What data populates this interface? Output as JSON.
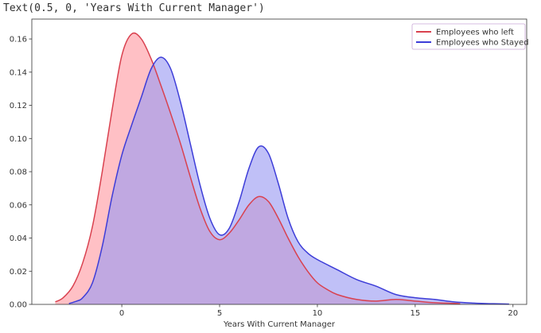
{
  "output_text": "Text(0.5, 0, 'Years With Current Manager')",
  "chart_data": {
    "type": "area",
    "title": "",
    "xlabel": "Years With Current Manager",
    "ylabel": "",
    "xlim": [
      -4.6,
      20.7
    ],
    "ylim": [
      0,
      0.172
    ],
    "xticks": [
      0,
      5,
      10,
      15,
      20
    ],
    "yticks": [
      0.0,
      0.02,
      0.04,
      0.06,
      0.08,
      0.1,
      0.12,
      0.14,
      0.16
    ],
    "ytick_labels": [
      "0.00",
      "0.02",
      "0.04",
      "0.06",
      "0.08",
      "0.10",
      "0.12",
      "0.14",
      "0.16"
    ],
    "grid": false,
    "legend_position": "top-right",
    "series": [
      {
        "name": "Employees who left",
        "line_color": "#d9414f",
        "fill_color": "#ff9aa2",
        "x": [
          -3.4,
          -3.0,
          -2.5,
          -2.0,
          -1.5,
          -1.0,
          -0.5,
          0.0,
          0.5,
          1.0,
          1.5,
          2.0,
          2.5,
          3.0,
          3.5,
          4.0,
          4.5,
          5.0,
          5.5,
          6.0,
          6.5,
          7.0,
          7.5,
          8.0,
          8.5,
          9.0,
          9.5,
          10.0,
          10.5,
          11.0,
          12.0,
          13.0,
          14.0,
          15.0,
          16.0,
          17.0,
          17.3
        ],
        "y": [
          0.0015,
          0.004,
          0.011,
          0.025,
          0.047,
          0.08,
          0.117,
          0.15,
          0.163,
          0.16,
          0.148,
          0.132,
          0.115,
          0.097,
          0.077,
          0.058,
          0.044,
          0.039,
          0.043,
          0.051,
          0.06,
          0.065,
          0.062,
          0.052,
          0.04,
          0.029,
          0.02,
          0.013,
          0.009,
          0.006,
          0.003,
          0.002,
          0.003,
          0.002,
          0.001,
          0.0006,
          0.0004
        ]
      },
      {
        "name": "Employees who Stayed",
        "line_color": "#3d3dd8",
        "fill_color": "#9a9af2",
        "x": [
          -2.7,
          -2.3,
          -2.0,
          -1.5,
          -1.0,
          -0.5,
          0.0,
          0.5,
          1.0,
          1.5,
          2.0,
          2.5,
          3.0,
          3.5,
          4.0,
          4.5,
          5.0,
          5.5,
          6.0,
          6.5,
          7.0,
          7.5,
          8.0,
          8.5,
          9.0,
          9.5,
          10.0,
          11.0,
          12.0,
          13.0,
          14.0,
          15.0,
          16.0,
          17.0,
          18.0,
          19.0,
          19.8
        ],
        "y": [
          0.0005,
          0.002,
          0.004,
          0.013,
          0.035,
          0.065,
          0.09,
          0.108,
          0.125,
          0.142,
          0.149,
          0.142,
          0.122,
          0.097,
          0.072,
          0.052,
          0.042,
          0.046,
          0.062,
          0.082,
          0.095,
          0.091,
          0.073,
          0.052,
          0.038,
          0.031,
          0.027,
          0.021,
          0.015,
          0.011,
          0.006,
          0.004,
          0.003,
          0.0015,
          0.0008,
          0.0004,
          0.0002
        ]
      }
    ]
  }
}
